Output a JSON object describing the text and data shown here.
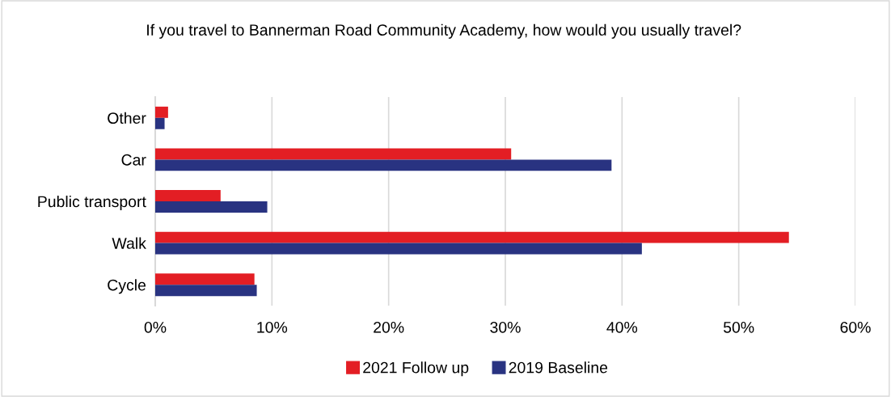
{
  "chart_data": {
    "type": "bar",
    "orientation": "horizontal",
    "title": "If you travel to Bannerman Road Community Academy, how would you usually travel?",
    "categories": [
      "Other",
      "Car",
      "Public transport",
      "Walk",
      "Cycle"
    ],
    "series": [
      {
        "name": "2021 Follow up",
        "color": "#e31e24",
        "values": [
          1.1,
          30.5,
          5.6,
          54.3,
          8.5
        ]
      },
      {
        "name": "2019 Baseline",
        "color": "#293381",
        "values": [
          0.8,
          39.1,
          9.6,
          41.7,
          8.7
        ]
      }
    ],
    "xlim": [
      0,
      60
    ],
    "xticks": [
      {
        "value": 0,
        "label": "0%"
      },
      {
        "value": 10,
        "label": "10%"
      },
      {
        "value": 20,
        "label": "20%"
      },
      {
        "value": 30,
        "label": "30%"
      },
      {
        "value": 40,
        "label": "40%"
      },
      {
        "value": 50,
        "label": "50%"
      },
      {
        "value": 60,
        "label": "60%"
      }
    ],
    "grid": "x",
    "legend": "bottom"
  }
}
